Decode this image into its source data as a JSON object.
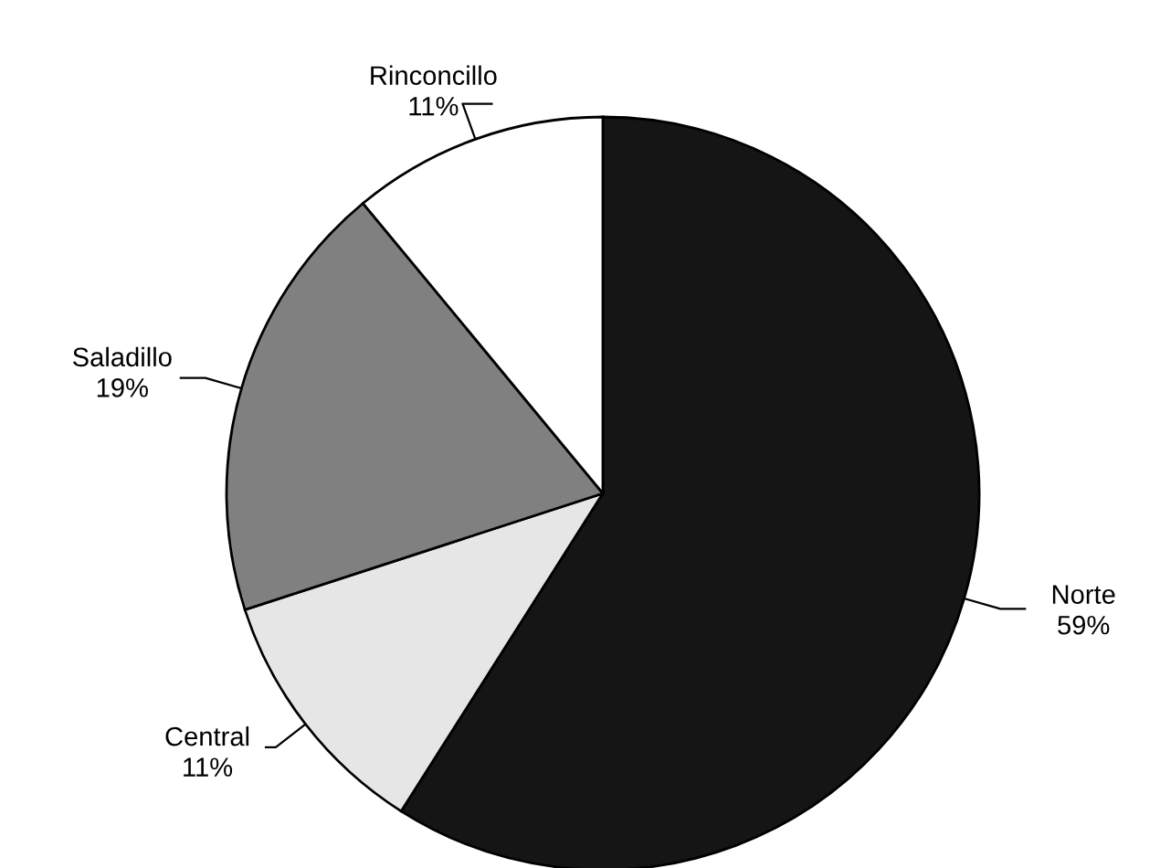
{
  "chart_data": {
    "type": "pie",
    "categories": [
      "Norte",
      "Central",
      "Saladillo",
      "Rinconcillo"
    ],
    "values": [
      59,
      11,
      19,
      11
    ],
    "colors": [
      "#151515",
      "#e6e6e6",
      "#808080",
      "#ffffff"
    ],
    "value_labels": [
      "59%",
      "11%",
      "19%",
      "11%"
    ]
  }
}
